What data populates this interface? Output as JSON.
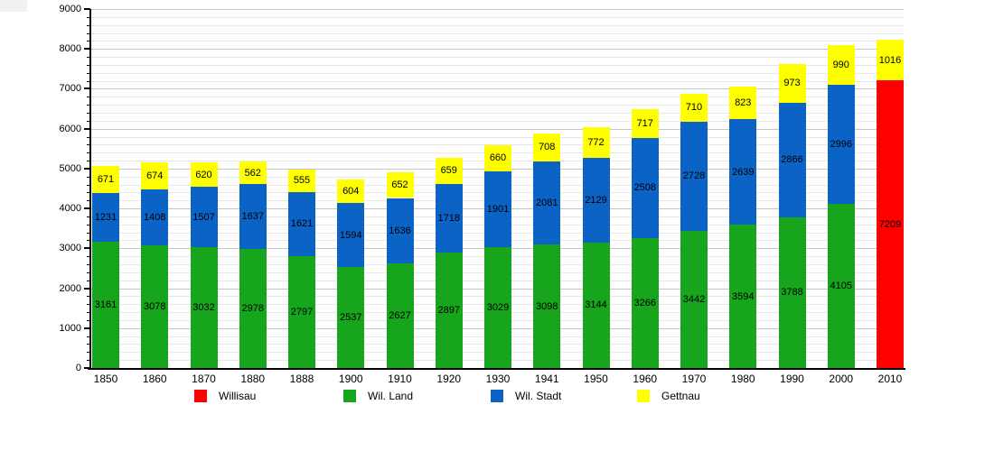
{
  "chart_data": {
    "type": "bar",
    "stacked": true,
    "title": "",
    "xlabel": "",
    "ylabel": "",
    "categories": [
      "1850",
      "1860",
      "1870",
      "1880",
      "1888",
      "1900",
      "1910",
      "1920",
      "1930",
      "1941",
      "1950",
      "1960",
      "1970",
      "1980",
      "1990",
      "2000",
      "2010"
    ],
    "series": [
      {
        "name": "Willisau",
        "color": "#ff0000",
        "values": [
          null,
          null,
          null,
          null,
          null,
          null,
          null,
          null,
          null,
          null,
          null,
          null,
          null,
          null,
          null,
          null,
          7209
        ]
      },
      {
        "name": "Wil. Land",
        "color": "#16a51c",
        "values": [
          3161,
          3078,
          3032,
          2978,
          2797,
          2537,
          2627,
          2897,
          3029,
          3098,
          3144,
          3266,
          3442,
          3594,
          3788,
          4105,
          null
        ]
      },
      {
        "name": "Wil. Stadt",
        "color": "#0b63c5",
        "values": [
          1231,
          1408,
          1507,
          1637,
          1621,
          1594,
          1636,
          1718,
          1901,
          2081,
          2129,
          2508,
          2728,
          2639,
          2866,
          2996,
          null
        ]
      },
      {
        "name": "Gettnau",
        "color": "#ffff00",
        "values": [
          671,
          674,
          620,
          562,
          555,
          604,
          652,
          659,
          660,
          708,
          772,
          717,
          710,
          823,
          973,
          990,
          1016
        ]
      }
    ],
    "ylim": [
      0,
      9000
    ],
    "y_major_step": 1000,
    "y_minor_step": 200,
    "y_tick_labels": [
      "0",
      "1000",
      "2000",
      "3000",
      "4000",
      "5000",
      "6000",
      "7000",
      "8000",
      "9000"
    ],
    "grid": "on",
    "legend_position": "bottom",
    "legend_labels": [
      "Willisau",
      "Wil. Land",
      "Wil. Stadt",
      "Gettnau"
    ]
  },
  "colors": {
    "axis": "#000000",
    "grid_major": "#c6c6c6",
    "grid_minor": "#e7e7e7",
    "background": "#ffffff",
    "value_label_text": "#000000"
  }
}
